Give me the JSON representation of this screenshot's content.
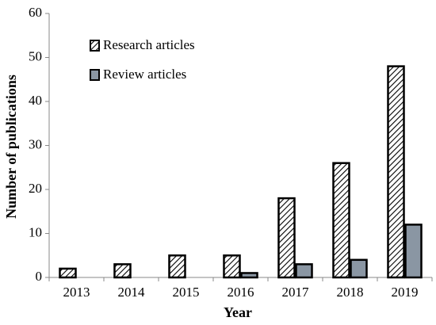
{
  "chart_data": {
    "type": "bar",
    "x_label": "Year",
    "y_label": "Number of publications",
    "categories": [
      "2013",
      "2014",
      "2015",
      "2016",
      "2017",
      "2018",
      "2019"
    ],
    "series": [
      {
        "name": "Research articles",
        "color": "#000000",
        "values": [
          2,
          3,
          5,
          5,
          18,
          26,
          48
        ]
      },
      {
        "name": "Review articles",
        "color": "#8a96a3",
        "values": [
          0,
          0,
          0,
          1,
          3,
          4,
          12
        ]
      }
    ],
    "ylim": [
      0,
      60
    ],
    "yticks": [
      0,
      10,
      20,
      30,
      40,
      50,
      60
    ],
    "grid": false,
    "legend": "top-left"
  }
}
